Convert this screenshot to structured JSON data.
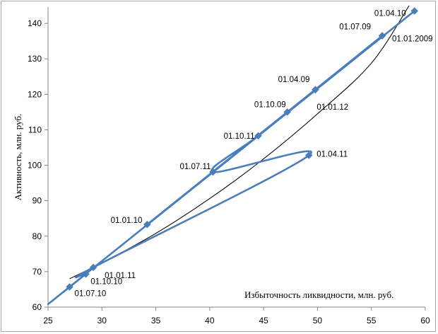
{
  "chart_data": {
    "type": "line",
    "title": "",
    "xlabel": "Избыточность ликвидности,  млн. руб.",
    "ylabel": "Активность, млн. руб.",
    "xlim": [
      25,
      60
    ],
    "ylim": [
      60,
      145
    ],
    "xticks": [
      "25",
      "30",
      "35",
      "40",
      "45",
      "50",
      "55",
      "60"
    ],
    "yticks": [
      "60",
      "70",
      "80",
      "90",
      "100",
      "110",
      "120",
      "130",
      "140"
    ],
    "grid": false,
    "legend": "none",
    "series_color": "#4a7ebb",
    "trend_color": "#000000",
    "series": [
      {
        "points": [
          {
            "label": "01.01.2009",
            "x": 56.0,
            "y": 136.5
          },
          {
            "label": "01.04.09",
            "x": 49.8,
            "y": 121.3
          },
          {
            "label": "01.07.09",
            "x": 56.0,
            "y": 136.5
          },
          {
            "label": "01.10.09",
            "x": 47.2,
            "y": 115.0
          },
          {
            "label": "01.01.10",
            "x": 34.2,
            "y": 83.3
          },
          {
            "label": "01.04.10",
            "x": 59.0,
            "y": 143.5
          },
          {
            "label": "01.07.10",
            "x": 27.0,
            "y": 65.7
          },
          {
            "label": "01.10.10",
            "x": 28.5,
            "y": 69.3
          },
          {
            "label": "01.01.11",
            "x": 29.2,
            "y": 71.2
          },
          {
            "label": "01.04.11",
            "x": 49.2,
            "y": 102.8
          },
          {
            "label": "01.07.11",
            "x": 40.3,
            "y": 98.1
          },
          {
            "label": "01.10.11",
            "x": 44.5,
            "y": 108.3
          },
          {
            "label": "01.01.12",
            "x": 49.8,
            "y": 121.3
          }
        ]
      }
    ],
    "trend": {
      "type": "polynomial",
      "x": [
        27,
        30,
        35,
        40,
        45,
        50,
        55,
        58.5
      ],
      "y": [
        68.0,
        72.5,
        80.8,
        90.6,
        101.8,
        114.5,
        128.8,
        145.0
      ]
    }
  }
}
